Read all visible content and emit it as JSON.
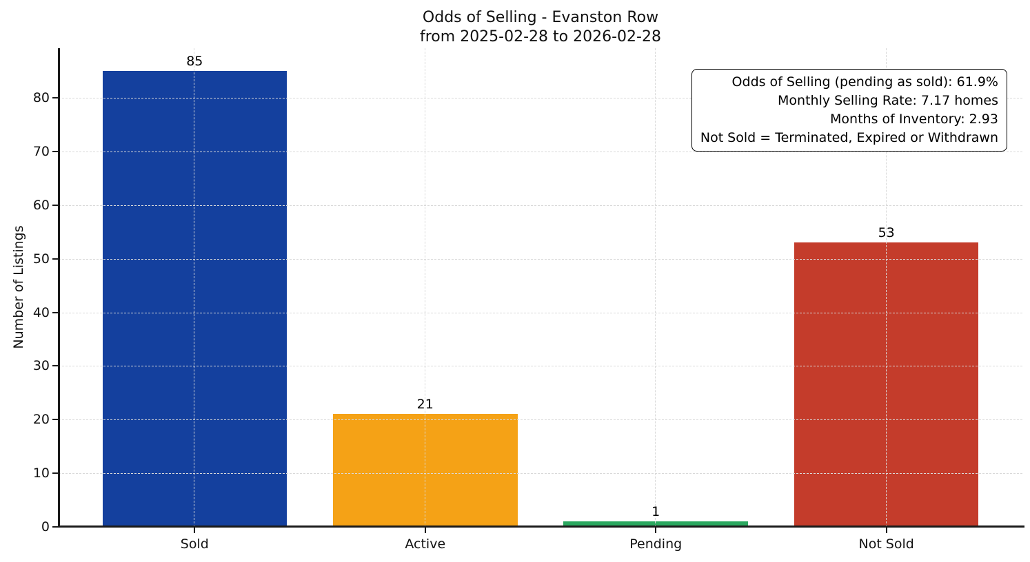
{
  "title": {
    "line1": "Odds of Selling - Evanston Row",
    "line2": "from 2025-02-28 to 2026-02-28"
  },
  "chart_data": {
    "type": "bar",
    "title": "Odds of Selling - Evanston Row\nfrom 2025-02-28 to 2026-02-28",
    "categories": [
      "Sold",
      "Active",
      "Pending",
      "Not Sold"
    ],
    "values": [
      85,
      21,
      1,
      53
    ],
    "bar_value_labels": [
      "85",
      "21",
      "1",
      "53"
    ],
    "bar_colors": [
      "#14409e",
      "#f5a216",
      "#2aa85f",
      "#c43c2b"
    ],
    "xlabel": "",
    "ylabel": "Number of Listings",
    "yticks": [
      0,
      10,
      20,
      30,
      40,
      50,
      60,
      70,
      80
    ],
    "ylim": [
      0,
      89.25
    ],
    "bar_width_units": 0.8,
    "grid": true,
    "grid_style": "dashed",
    "grid_color": "#d9d9d9",
    "legend": "none",
    "annotation": {
      "position": "top-right",
      "lines": [
        "Odds of Selling (pending as sold): 61.9%",
        "Monthly Selling Rate: 7.17 homes",
        "Months of Inventory: 2.93",
        "Not Sold = Terminated, Expired or Withdrawn"
      ],
      "stats": {
        "odds_of_selling_pct": 61.9,
        "monthly_selling_rate_homes": 7.17,
        "months_of_inventory": 2.93
      }
    }
  }
}
